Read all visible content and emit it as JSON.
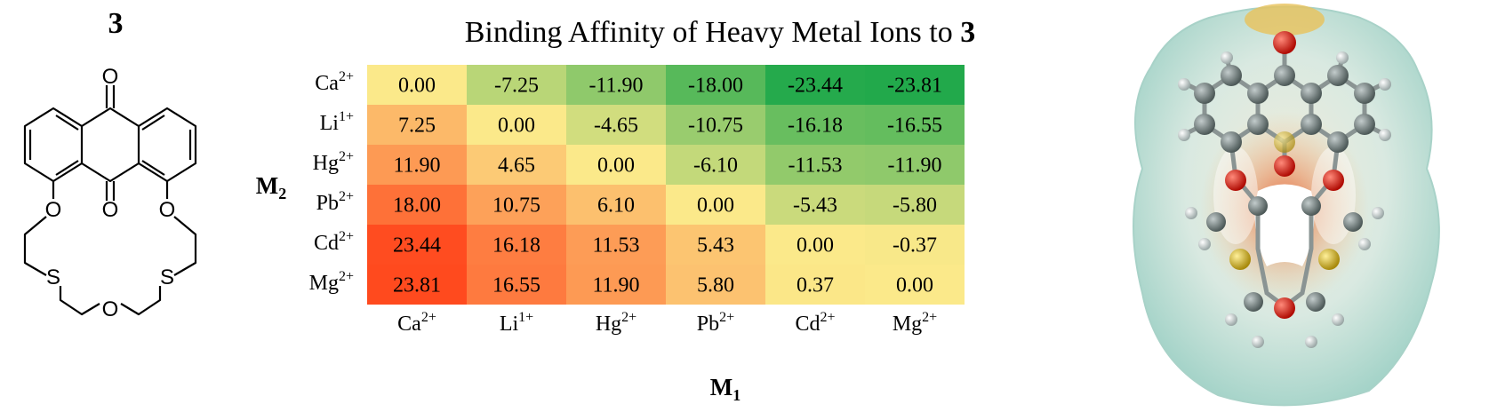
{
  "compound": {
    "label": "3",
    "atoms": [
      "O",
      "O",
      "O",
      "O",
      "S",
      "S",
      "O"
    ]
  },
  "chart_data": {
    "type": "heatmap",
    "title_prefix": "Binding Affinity of Heavy Metal Ions to ",
    "title_compound": "3",
    "xlabel": "M",
    "xlabel_sub": "1",
    "ylabel": "M",
    "ylabel_sub": "2",
    "x_categories": [
      {
        "symbol": "Ca",
        "charge": "2+"
      },
      {
        "symbol": "Li",
        "charge": "1+"
      },
      {
        "symbol": "Hg",
        "charge": "2+"
      },
      {
        "symbol": "Pb",
        "charge": "2+"
      },
      {
        "symbol": "Cd",
        "charge": "2+"
      },
      {
        "symbol": "Mg",
        "charge": "2+"
      }
    ],
    "y_categories": [
      {
        "symbol": "Ca",
        "charge": "2+"
      },
      {
        "symbol": "Li",
        "charge": "1+"
      },
      {
        "symbol": "Hg",
        "charge": "2+"
      },
      {
        "symbol": "Pb",
        "charge": "2+"
      },
      {
        "symbol": "Cd",
        "charge": "2+"
      },
      {
        "symbol": "Mg",
        "charge": "2+"
      }
    ],
    "values": [
      [
        "0.00",
        "-7.25",
        "-11.90",
        "-18.00",
        "-23.44",
        "-23.81"
      ],
      [
        "7.25",
        "0.00",
        "-4.65",
        "-10.75",
        "-16.18",
        "-16.55"
      ],
      [
        "11.90",
        "4.65",
        "0.00",
        "-6.10",
        "-11.53",
        "-11.90"
      ],
      [
        "18.00",
        "10.75",
        "6.10",
        "0.00",
        "-5.43",
        "-5.80"
      ],
      [
        "23.44",
        "16.18",
        "11.53",
        "5.43",
        "0.00",
        "-0.37"
      ],
      [
        "23.81",
        "16.55",
        "11.90",
        "5.80",
        "0.37",
        "0.00"
      ]
    ],
    "color_scale": {
      "min": -23.81,
      "mid": 0,
      "max": 23.81,
      "low_color": "#22a94b",
      "mid_color": "#fbe98a",
      "high_color": "#ff4a1e"
    },
    "grid": false,
    "legend": "none"
  },
  "render": {
    "surface_color": "#b9ddd6",
    "oxygen_color": "#e0150b",
    "sulfur_color": "#d2b21a",
    "carbon_color": "#6f7d7c",
    "hydrogen_color": "#e3eaea"
  }
}
